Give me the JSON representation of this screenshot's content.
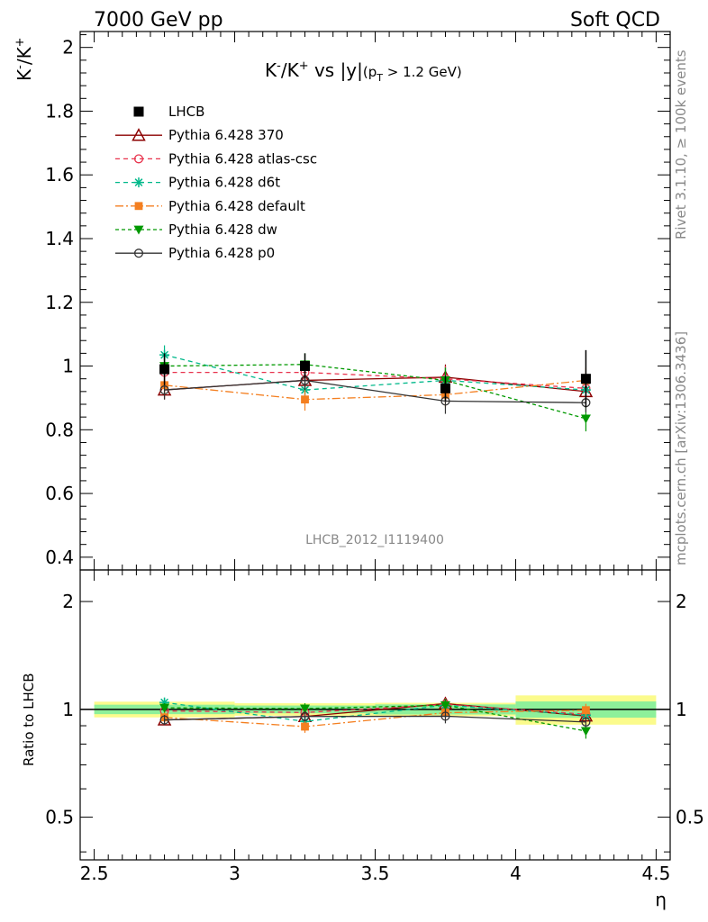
{
  "header": {
    "left": "7000 GeV pp",
    "right": "Soft QCD"
  },
  "side_text": {
    "rivet": "Rivet 3.1.10, ≥ 100k events",
    "mcplots": "mcplots.cern.ch [arXiv:1306.3436]"
  },
  "chart_data": {
    "type": "line",
    "title_parts": {
      "main": "K",
      "sup1": "-",
      "mid": "/K",
      "sup2": "+",
      "rest": " vs |y|",
      "sub_open": "(p",
      "sub_T": "T",
      "sub_rest": " > 1.2 GeV)"
    },
    "ylabel_parts": {
      "a": "K",
      "sup1": "-",
      "b": "/K",
      "sup2": "+"
    },
    "xlabel": "η",
    "ratio_ylabel": "Ratio to LHCB",
    "watermark": "LHCB_2012_I1119400",
    "xlim": [
      2.45,
      4.55
    ],
    "ylim": [
      0.36,
      2.05
    ],
    "ratio_ylim": [
      0.38,
      2.45
    ],
    "ratio_log": true,
    "x_ticks": [
      "2.5",
      "3",
      "3.5",
      "4",
      "4.5"
    ],
    "x_tick_values": [
      2.5,
      3,
      3.5,
      4,
      4.5
    ],
    "y_ticks": [
      "0.4",
      "0.6",
      "0.8",
      "1",
      "1.2",
      "1.4",
      "1.6",
      "1.8",
      "2"
    ],
    "y_tick_values": [
      0.4,
      0.6,
      0.8,
      1.0,
      1.2,
      1.4,
      1.6,
      1.8,
      2.0
    ],
    "ratio_ticks": [
      "0.5",
      "1",
      "2"
    ],
    "ratio_tick_values": [
      0.5,
      1,
      2
    ],
    "x": [
      2.75,
      3.25,
      3.75,
      4.25
    ],
    "bins": [
      [
        2.5,
        3.0
      ],
      [
        3.0,
        3.5
      ],
      [
        3.5,
        4.0
      ],
      [
        4.0,
        4.5
      ]
    ],
    "data": {
      "name": "LHCB",
      "values": [
        0.99,
        1.0,
        0.93,
        0.96
      ],
      "band_inner": [
        0.03,
        0.025,
        0.03,
        0.05
      ],
      "band_outer": [
        0.05,
        0.04,
        0.04,
        0.09
      ]
    },
    "series": [
      {
        "name": "Pythia 6.428 370",
        "color": "#8b0000",
        "dash": "",
        "marker": "triangle-open",
        "values": [
          0.925,
          0.955,
          0.965,
          0.92
        ],
        "errors": [
          0.03,
          0.03,
          0.04,
          0.03
        ]
      },
      {
        "name": "Pythia 6.428 atlas-csc",
        "color": "#e8334d",
        "dash": "5,4",
        "marker": "circle-open",
        "values": [
          0.98,
          0.98,
          0.96,
          0.93
        ],
        "errors": [
          0.03,
          0.03,
          0.04,
          0.03
        ]
      },
      {
        "name": "Pythia 6.428 d6t",
        "color": "#00b88a",
        "dash": "5,4",
        "marker": "star",
        "values": [
          1.035,
          0.925,
          0.955,
          0.925
        ],
        "errors": [
          0.03,
          0.03,
          0.04,
          0.03
        ]
      },
      {
        "name": "Pythia 6.428 default",
        "color": "#f47f20",
        "dash": "9,3,2,3",
        "marker": "square",
        "values": [
          0.94,
          0.895,
          0.91,
          0.955
        ],
        "errors": [
          0.03,
          0.035,
          0.04,
          0.04
        ]
      },
      {
        "name": "Pythia 6.428 dw",
        "color": "#009900",
        "dash": "4,3",
        "marker": "triangle-down",
        "values": [
          1.0,
          1.005,
          0.955,
          0.835
        ],
        "errors": [
          0.03,
          0.035,
          0.04,
          0.04
        ]
      },
      {
        "name": "Pythia 6.428 p0",
        "color": "#333333",
        "dash": "",
        "marker": "circle-open",
        "values": [
          0.925,
          0.955,
          0.89,
          0.885
        ],
        "errors": [
          0.03,
          0.03,
          0.04,
          0.03
        ]
      }
    ]
  }
}
